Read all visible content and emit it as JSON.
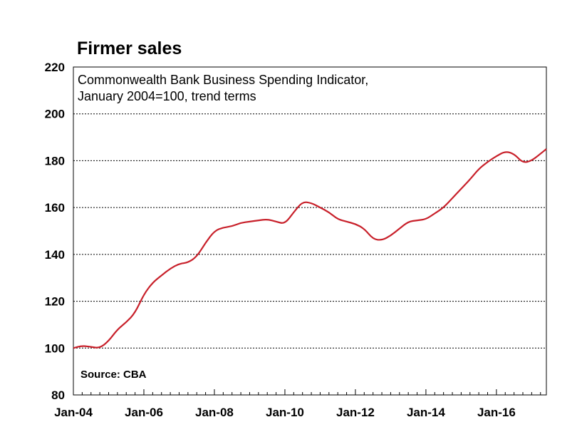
{
  "chart_data": {
    "type": "line",
    "title": "Firmer sales",
    "subtitle_lines": [
      "Commonwealth Bank Business Spending Indicator,",
      "January 2004=100, trend terms"
    ],
    "source": "Source: CBA",
    "xlabel": "",
    "ylabel": "",
    "x_ticks": [
      "Jan-04",
      "Jan-06",
      "Jan-08",
      "Jan-10",
      "Jan-12",
      "Jan-14",
      "Jan-16"
    ],
    "y_ticks": [
      80,
      100,
      120,
      140,
      160,
      180,
      200,
      220
    ],
    "ylim": [
      80,
      220
    ],
    "xlim": [
      "2004-01",
      "2017-06"
    ],
    "grid": "horizontal dashed",
    "line_color": "#c8202a",
    "series": [
      {
        "x": [
          "2004-01",
          "2004-04",
          "2004-07",
          "2004-10",
          "2005-01",
          "2005-04",
          "2005-07",
          "2005-10",
          "2006-01",
          "2006-04",
          "2006-07",
          "2006-10",
          "2007-01",
          "2007-04",
          "2007-07",
          "2007-10",
          "2008-01",
          "2008-04",
          "2008-07",
          "2008-10",
          "2009-01",
          "2009-04",
          "2009-07",
          "2009-10",
          "2010-01",
          "2010-04",
          "2010-07",
          "2010-10",
          "2011-01",
          "2011-04",
          "2011-07",
          "2011-10",
          "2012-01",
          "2012-04",
          "2012-07",
          "2012-10",
          "2013-01",
          "2013-04",
          "2013-07",
          "2013-10",
          "2014-01",
          "2014-04",
          "2014-07",
          "2014-10",
          "2015-01",
          "2015-04",
          "2015-07",
          "2015-10",
          "2016-01",
          "2016-04",
          "2016-07",
          "2016-10",
          "2017-01",
          "2017-04",
          "2017-06"
        ],
        "values": [
          100,
          101,
          100.5,
          100,
          103,
          108,
          111,
          115,
          123,
          128,
          131,
          134,
          136,
          136.5,
          139,
          145,
          150,
          151.5,
          152,
          153.5,
          154,
          154.5,
          155,
          154,
          153,
          158,
          162.5,
          162,
          160,
          158,
          155,
          154,
          153,
          151,
          146.5,
          146,
          148,
          151,
          154,
          154.5,
          155,
          157.5,
          160,
          164,
          168,
          172,
          176.5,
          179.5,
          182,
          184,
          183,
          179,
          180,
          183,
          185
        ]
      }
    ]
  }
}
